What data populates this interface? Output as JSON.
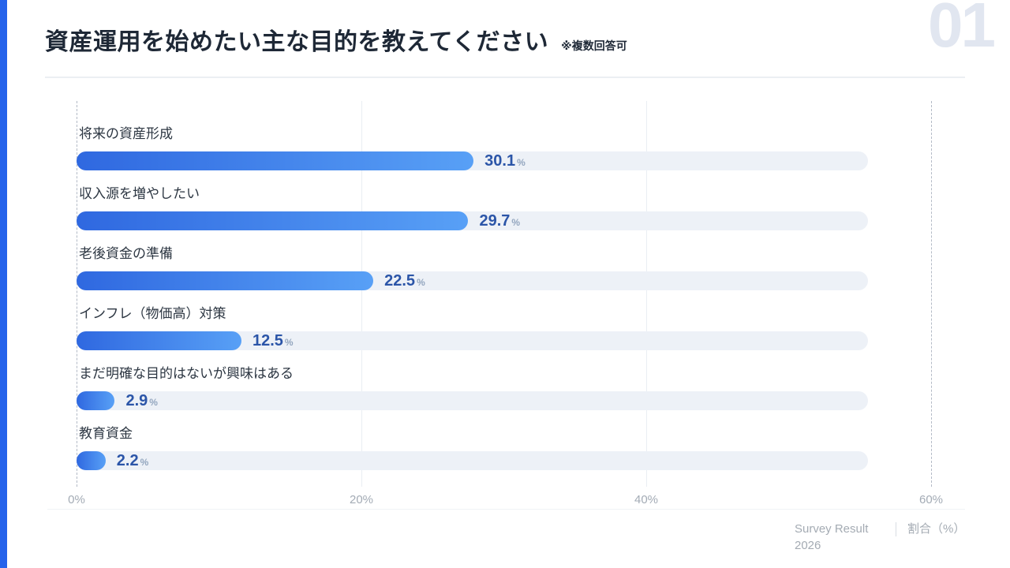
{
  "header": {
    "title": "資産運用を始めたい主な目的を教えてください",
    "note": "※複数回答可",
    "page_number": "01"
  },
  "chart_data": {
    "type": "bar",
    "orientation": "horizontal",
    "title": "資産運用を始めたい主な目的を教えてください",
    "xlabel": "割合（%）",
    "ylabel": "",
    "categories": [
      "将来の資産形成",
      "収入源を増やしたい",
      "老後資金の準備",
      "インフレ（物価高）対策",
      "まだ明確な目的はないが興味はある",
      "教育資金"
    ],
    "values": [
      30.1,
      29.7,
      22.5,
      12.5,
      2.9,
      2.2
    ],
    "unit": "%",
    "xlim": [
      0,
      60
    ],
    "x_ticks": [
      0,
      20,
      40,
      60
    ],
    "x_tick_labels": [
      "0%",
      "20%",
      "40%",
      "60%"
    ],
    "grid": "vertical",
    "legend": "none",
    "colors": {
      "bar_gradient_start": "#2f68e0",
      "bar_gradient_end": "#58a0f6",
      "track": "#edf1f7",
      "value_number": "#2b55a8",
      "value_unit": "#93a6bf"
    }
  },
  "footer": {
    "source_line1": "Survey Result",
    "source_line2": "2026",
    "axis_note": "割合（%）"
  },
  "theme": {
    "accent": "#2563eb",
    "title_color": "#1e2836",
    "page_number_color": "#e1e6f0"
  }
}
